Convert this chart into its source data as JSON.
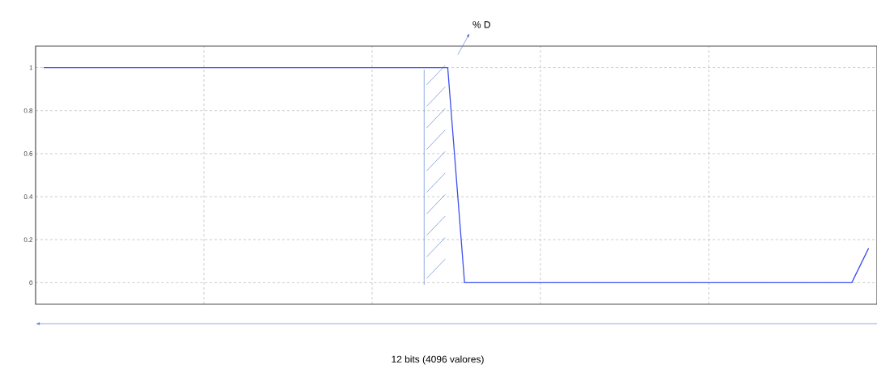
{
  "chart_data": {
    "type": "line",
    "categories": [
      null,
      null,
      null,
      null,
      null,
      null,
      null,
      null,
      null,
      null,
      null,
      null,
      null,
      null,
      null,
      null,
      null,
      null,
      null,
      null,
      null,
      null,
      null,
      null,
      null,
      null,
      null,
      null,
      null,
      null,
      null,
      null,
      null,
      null,
      null,
      null,
      null,
      null,
      null,
      null,
      null,
      null,
      null,
      null,
      null,
      null,
      null,
      null,
      null,
      null
    ],
    "values": [
      1,
      1,
      1,
      1,
      1,
      1,
      1,
      1,
      1,
      1,
      1,
      1,
      1,
      1,
      1,
      1,
      1,
      1,
      1,
      1,
      1,
      1,
      1,
      1,
      1,
      0,
      0,
      0,
      0,
      0,
      0,
      0,
      0,
      0,
      0,
      0,
      0,
      0,
      0,
      0,
      0,
      0,
      0,
      0,
      0,
      0,
      0,
      0,
      0,
      0.16
    ],
    "color": "#3d4ff0",
    "ylim": [
      -0.1,
      1.1
    ],
    "yticks": [
      0,
      0.2,
      0.4,
      0.6,
      0.8,
      1
    ],
    "annotations": [
      "% D",
      "12 bits (4096 valores)"
    ],
    "grid": true,
    "tick_labels": "y",
    "marker": "none",
    "line_style": "solid"
  }
}
